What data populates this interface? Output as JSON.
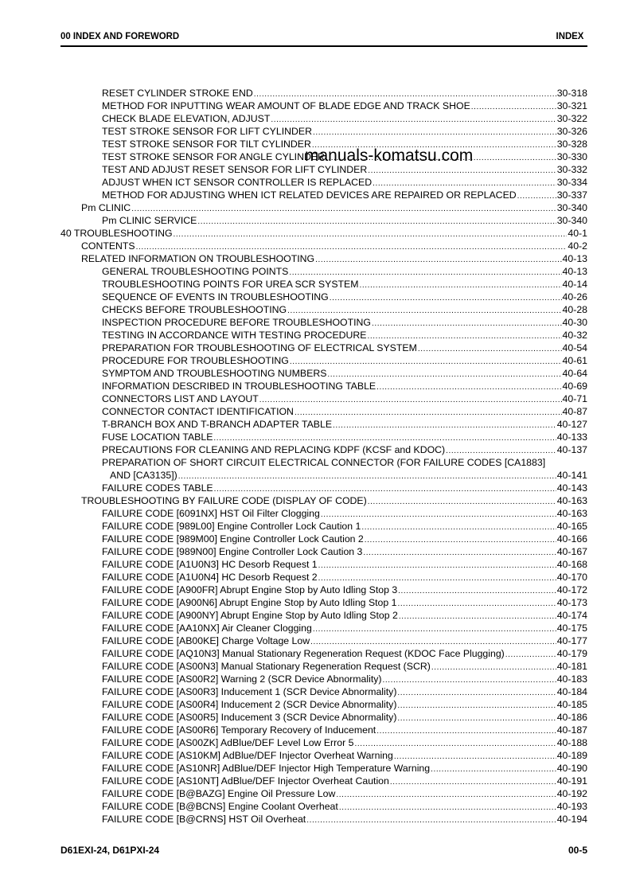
{
  "header": {
    "left": "00 INDEX AND FOREWORD",
    "right": "INDEX"
  },
  "watermark": "manuals-komatsu.com",
  "footer": {
    "left": "D61EXI-24, D61PXI-24",
    "right": "00-5"
  },
  "toc": [
    {
      "level": 2,
      "text": "RESET CYLINDER STROKE END",
      "page": "30-318"
    },
    {
      "level": 2,
      "text": "METHOD FOR INPUTTING WEAR AMOUNT OF BLADE EDGE AND TRACK SHOE",
      "page": "30-321"
    },
    {
      "level": 2,
      "text": "CHECK BLADE ELEVATION, ADJUST",
      "page": "30-322"
    },
    {
      "level": 2,
      "text": "TEST STROKE SENSOR FOR LIFT CYLINDER",
      "page": "30-326"
    },
    {
      "level": 2,
      "text": "TEST STROKE SENSOR FOR TILT CYLINDER",
      "page": "30-328"
    },
    {
      "level": 2,
      "text": "TEST STROKE SENSOR FOR ANGLE CYLINDER",
      "page": "30-330"
    },
    {
      "level": 2,
      "text": "TEST AND ADJUST RESET SENSOR FOR LIFT CYLINDER",
      "page": "30-332"
    },
    {
      "level": 2,
      "text": "ADJUST WHEN ICT SENSOR CONTROLLER IS REPLACED",
      "page": "30-334"
    },
    {
      "level": 2,
      "text": "METHOD FOR ADJUSTING WHEN ICT RELATED DEVICES ARE REPAIRED OR REPLACED",
      "page": "30-337"
    },
    {
      "level": 1,
      "text": "Pm CLINIC",
      "page": "30-340"
    },
    {
      "level": 2,
      "text": "Pm CLINIC SERVICE",
      "page": "30-340"
    },
    {
      "level": 0,
      "text": "40 TROUBLESHOOTING",
      "page": "40-1"
    },
    {
      "level": 1,
      "text": "CONTENTS",
      "page": "40-2"
    },
    {
      "level": 1,
      "text": "RELATED INFORMATION ON TROUBLESHOOTING",
      "page": "40-13"
    },
    {
      "level": 2,
      "text": "GENERAL TROUBLESHOOTING POINTS",
      "page": "40-13"
    },
    {
      "level": 2,
      "text": "TROUBLESHOOTING POINTS FOR UREA SCR SYSTEM",
      "page": "40-14"
    },
    {
      "level": 2,
      "text": "SEQUENCE OF EVENTS IN TROUBLESHOOTING",
      "page": "40-26"
    },
    {
      "level": 2,
      "text": "CHECKS BEFORE TROUBLESHOOTING",
      "page": "40-28"
    },
    {
      "level": 2,
      "text": "INSPECTION PROCEDURE BEFORE TROUBLESHOOTING",
      "page": "40-30"
    },
    {
      "level": 2,
      "text": "TESTING IN ACCORDANCE WITH TESTING PROCEDURE",
      "page": "40-32"
    },
    {
      "level": 2,
      "text": "PREPARATION FOR TROUBLESHOOTING OF ELECTRICAL SYSTEM",
      "page": "40-54"
    },
    {
      "level": 2,
      "text": "PROCEDURE FOR TROUBLESHOOTING",
      "page": "40-61"
    },
    {
      "level": 2,
      "text": "SYMPTOM AND TROUBLESHOOTING NUMBERS",
      "page": "40-64"
    },
    {
      "level": 2,
      "text": "INFORMATION DESCRIBED IN TROUBLESHOOTING TABLE",
      "page": "40-69"
    },
    {
      "level": 2,
      "text": "CONNECTORS LIST AND LAYOUT",
      "page": "40-71"
    },
    {
      "level": 2,
      "text": "CONNECTOR CONTACT IDENTIFICATION",
      "page": "40-87"
    },
    {
      "level": 2,
      "text": "T-BRANCH BOX AND T-BRANCH ADAPTER TABLE",
      "page": "40-127"
    },
    {
      "level": 2,
      "text": "FUSE LOCATION TABLE",
      "page": "40-133"
    },
    {
      "level": 2,
      "text": "PRECAUTIONS FOR CLEANING AND REPLACING KDPF (KCSF and KDOC)",
      "page": "40-137"
    },
    {
      "level": 2,
      "text": "PREPARATION OF SHORT CIRCUIT ELECTRICAL CONNECTOR (FOR FAILURE CODES [CA1883]",
      "page": ""
    },
    {
      "level": 3,
      "text": "AND [CA3135])",
      "page": "40-141"
    },
    {
      "level": 2,
      "text": "FAILURE CODES TABLE",
      "page": "40-143"
    },
    {
      "level": 1,
      "text": "TROUBLESHOOTING BY FAILURE CODE (DISPLAY OF CODE)",
      "page": "40-163"
    },
    {
      "level": 2,
      "text": "FAILURE CODE [6091NX] HST Oil Filter Clogging",
      "page": "40-163"
    },
    {
      "level": 2,
      "text": "FAILURE CODE [989L00] Engine Controller Lock Caution 1",
      "page": "40-165"
    },
    {
      "level": 2,
      "text": "FAILURE CODE [989M00] Engine Controller Lock Caution 2",
      "page": "40-166"
    },
    {
      "level": 2,
      "text": "FAILURE CODE [989N00] Engine Controller Lock Caution 3",
      "page": "40-167"
    },
    {
      "level": 2,
      "text": "FAILURE CODE [A1U0N3] HC Desorb Request 1",
      "page": "40-168"
    },
    {
      "level": 2,
      "text": "FAILURE CODE [A1U0N4] HC Desorb Request 2",
      "page": "40-170"
    },
    {
      "level": 2,
      "text": "FAILURE CODE [A900FR] Abrupt Engine Stop by Auto Idling Stop 3",
      "page": "40-172"
    },
    {
      "level": 2,
      "text": "FAILURE CODE [A900N6] Abrupt Engine Stop by Auto Idling Stop 1",
      "page": "40-173"
    },
    {
      "level": 2,
      "text": "FAILURE CODE [A900NY] Abrupt Engine Stop by Auto Idling Stop 2",
      "page": "40-174"
    },
    {
      "level": 2,
      "text": "FAILURE CODE [AA10NX] Air Cleaner Clogging",
      "page": "40-175"
    },
    {
      "level": 2,
      "text": "FAILURE CODE [AB00KE] Charge Voltage Low",
      "page": "40-177"
    },
    {
      "level": 2,
      "text": "FAILURE CODE [AQ10N3] Manual Stationary Regeneration Request (KDOC Face Plugging)",
      "page": "40-179"
    },
    {
      "level": 2,
      "text": "FAILURE CODE [AS00N3] Manual Stationary Regeneration Request (SCR)",
      "page": "40-181"
    },
    {
      "level": 2,
      "text": "FAILURE CODE [AS00R2] Warning 2 (SCR Device Abnormality)",
      "page": "40-183"
    },
    {
      "level": 2,
      "text": "FAILURE CODE [AS00R3] Inducement 1 (SCR Device Abnormality)",
      "page": "40-184"
    },
    {
      "level": 2,
      "text": "FAILURE CODE [AS00R4] Inducement 2 (SCR Device Abnormality)",
      "page": "40-185"
    },
    {
      "level": 2,
      "text": "FAILURE CODE [AS00R5] Inducement 3 (SCR Device Abnormality)",
      "page": "40-186"
    },
    {
      "level": 2,
      "text": "FAILURE CODE [AS00R6] Temporary Recovery of Inducement",
      "page": "40-187"
    },
    {
      "level": 2,
      "text": "FAILURE CODE [AS00ZK] AdBlue/DEF Level Low Error 5",
      "page": "40-188"
    },
    {
      "level": 2,
      "text": "FAILURE CODE [AS10KM] AdBlue/DEF Injector Overheat Warning",
      "page": "40-189"
    },
    {
      "level": 2,
      "text": "FAILURE CODE [AS10NR] AdBlue/DEF Injector High Temperature Warning",
      "page": "40-190"
    },
    {
      "level": 2,
      "text": "FAILURE CODE [AS10NT] AdBlue/DEF Injector Overheat Caution",
      "page": "40-191"
    },
    {
      "level": 2,
      "text": "FAILURE CODE [B@BAZG] Engine Oil Pressure Low",
      "page": "40-192"
    },
    {
      "level": 2,
      "text": "FAILURE CODE [B@BCNS] Engine Coolant Overheat",
      "page": "40-193"
    },
    {
      "level": 2,
      "text": "FAILURE CODE [B@CRNS] HST Oil Overheat",
      "page": "40-194"
    }
  ]
}
